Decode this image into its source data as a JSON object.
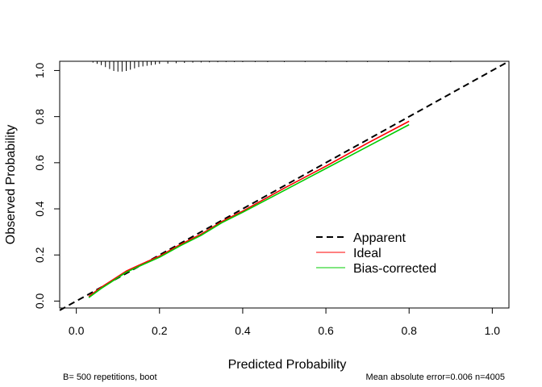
{
  "chart_data": {
    "type": "line",
    "xlabel": "Predicted Probability",
    "ylabel": "Observed Probability",
    "xlim": [
      -0.04,
      1.04
    ],
    "ylim": [
      -0.03,
      1.04
    ],
    "x_ticks": [
      0.0,
      0.2,
      0.4,
      0.6,
      0.8,
      1.0
    ],
    "x_tick_labels": [
      "0.0",
      "0.2",
      "0.4",
      "0.6",
      "0.8",
      "1.0"
    ],
    "y_ticks": [
      0.0,
      0.2,
      0.4,
      0.6,
      0.8,
      1.0
    ],
    "y_tick_labels": [
      "0.0",
      "0.2",
      "0.4",
      "0.6",
      "0.8",
      "1.0"
    ],
    "grid": false,
    "legend_position": "bottom-right",
    "footnote_left": "B= 500 repetitions, boot",
    "footnote_right": "Mean absolute error=0.006 n=4005",
    "reference_line": {
      "name": "Apparent",
      "x": [
        -0.04,
        1.04
      ],
      "y": [
        -0.04,
        1.04
      ],
      "color": "#000000",
      "style": "dashed"
    },
    "series": [
      {
        "name": "Ideal",
        "color": "#ff0000",
        "style": "solid",
        "x": [
          0.03,
          0.06,
          0.09,
          0.12,
          0.15,
          0.2,
          0.25,
          0.3,
          0.35,
          0.4,
          0.5,
          0.6,
          0.7,
          0.8
        ],
        "y": [
          0.02,
          0.06,
          0.095,
          0.13,
          0.155,
          0.195,
          0.245,
          0.29,
          0.345,
          0.39,
          0.49,
          0.585,
          0.685,
          0.78
        ]
      },
      {
        "name": "Bias-corrected",
        "color": "#00cc00",
        "style": "solid",
        "x": [
          0.03,
          0.06,
          0.09,
          0.12,
          0.15,
          0.2,
          0.25,
          0.3,
          0.35,
          0.4,
          0.5,
          0.6,
          0.7,
          0.8
        ],
        "y": [
          0.015,
          0.055,
          0.09,
          0.125,
          0.15,
          0.19,
          0.24,
          0.285,
          0.34,
          0.385,
          0.48,
          0.575,
          0.67,
          0.765
        ]
      }
    ],
    "rug": {
      "x": [
        0.04,
        0.05,
        0.06,
        0.07,
        0.08,
        0.09,
        0.1,
        0.11,
        0.12,
        0.13,
        0.14,
        0.15,
        0.16,
        0.17,
        0.18,
        0.19,
        0.2,
        0.22,
        0.24,
        0.26,
        0.28,
        0.3,
        0.32,
        0.34,
        0.36,
        0.38,
        0.4,
        0.43,
        0.46,
        0.5,
        0.55,
        0.6,
        0.65,
        0.7,
        0.75,
        0.8,
        0.85,
        0.9
      ],
      "freq": [
        0.1,
        0.2,
        0.3,
        0.45,
        0.6,
        0.75,
        0.8,
        0.8,
        0.75,
        0.65,
        0.55,
        0.45,
        0.4,
        0.35,
        0.3,
        0.25,
        0.2,
        0.18,
        0.15,
        0.12,
        0.1,
        0.09,
        0.08,
        0.07,
        0.06,
        0.06,
        0.05,
        0.05,
        0.04,
        0.04,
        0.03,
        0.03,
        0.03,
        0.02,
        0.02,
        0.02,
        0.02,
        0.02
      ]
    }
  }
}
